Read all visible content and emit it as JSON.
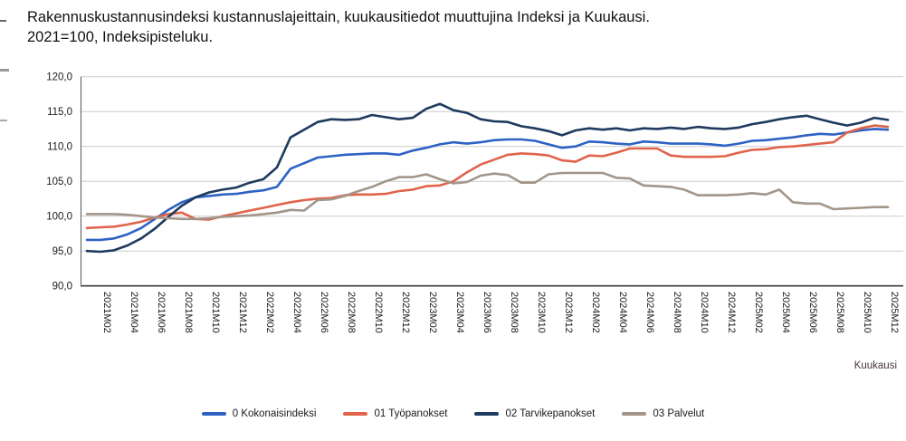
{
  "title": {
    "line1": "Rakennuskustannusindeksi kustannuslajeittain, kuukausitiedot muuttujina Indeksi ja Kuukausi.",
    "line2": "2021=100, Indeksipisteluku."
  },
  "chart_data": {
    "type": "line",
    "title": "Rakennuskustannusindeksi kustannuslajeittain, kuukausitiedot muuttujina Indeksi ja Kuukausi. 2021=100, Indeksipisteluku.",
    "x_axis_label": "Kuukausi",
    "ylim": [
      90,
      120
    ],
    "y_step": 5,
    "grid": "horizontal-only",
    "legend_position": "bottom",
    "y_tick_labels": [
      "120,0",
      "115,0",
      "110,0",
      "105,0",
      "100,0",
      "95,0",
      "90,0"
    ],
    "x_tick_labels": [
      "2021M02",
      "2021M04",
      "2021M06",
      "2021M08",
      "2021M10",
      "2021M12",
      "2022M02",
      "2022M04",
      "2022M06",
      "2022M08",
      "2022M10",
      "2022M12",
      "2023M02",
      "2023M04",
      "2023M06",
      "2023M08",
      "2023M10",
      "2023M12",
      "2024M02",
      "2024M04",
      "2024M06",
      "2024M08",
      "2024M10",
      "2024M12",
      "2025M02",
      "2025M04",
      "2025M06",
      "2025M08",
      "2025M10",
      "2025M12"
    ],
    "categories": [
      "2021M01",
      "2021M02",
      "2021M03",
      "2021M04",
      "2021M05",
      "2021M06",
      "2021M07",
      "2021M08",
      "2021M09",
      "2021M10",
      "2021M11",
      "2021M12",
      "2022M01",
      "2022M02",
      "2022M03",
      "2022M04",
      "2022M05",
      "2022M06",
      "2022M07",
      "2022M08",
      "2022M09",
      "2022M10",
      "2022M11",
      "2022M12",
      "2023M01",
      "2023M02",
      "2023M03",
      "2023M04",
      "2023M05",
      "2023M06",
      "2023M07",
      "2023M08",
      "2023M09",
      "2023M10",
      "2023M11",
      "2023M12",
      "2024M01",
      "2024M02",
      "2024M03",
      "2024M04",
      "2024M05",
      "2024M06",
      "2024M07",
      "2024M08",
      "2024M09",
      "2024M10",
      "2024M11",
      "2024M12",
      "2025M01",
      "2025M02",
      "2025M03",
      "2025M04",
      "2025M05",
      "2025M06",
      "2025M07",
      "2025M08",
      "2025M09",
      "2025M10",
      "2025M11",
      "2025M12"
    ],
    "series": [
      {
        "name": "0 Kokonaisindeksi",
        "color": "#2d62c4",
        "values": [
          96.6,
          96.6,
          96.8,
          97.4,
          98.3,
          99.6,
          100.9,
          102.0,
          102.7,
          102.9,
          103.1,
          103.2,
          103.5,
          103.7,
          104.2,
          106.8,
          107.6,
          108.4,
          108.6,
          108.8,
          108.9,
          109.0,
          109.0,
          108.8,
          109.4,
          109.8,
          110.3,
          110.6,
          110.4,
          110.6,
          110.9,
          111.0,
          111.0,
          110.8,
          110.3,
          109.8,
          110.0,
          110.7,
          110.6,
          110.4,
          110.3,
          110.7,
          110.6,
          110.4,
          110.4,
          110.4,
          110.3,
          110.1,
          110.4,
          110.8,
          110.9,
          111.1,
          111.3,
          111.6,
          111.8,
          111.7,
          112.0,
          112.3,
          112.5,
          112.4
        ]
      },
      {
        "name": "01 Työpanokset",
        "color": "#e0634b",
        "values": [
          98.3,
          98.4,
          98.5,
          98.8,
          99.2,
          99.8,
          100.3,
          100.5,
          99.6,
          99.5,
          100.0,
          100.4,
          100.8,
          101.2,
          101.6,
          102.0,
          102.3,
          102.5,
          102.6,
          103.0,
          103.1,
          103.1,
          103.2,
          103.6,
          103.8,
          104.3,
          104.4,
          105.0,
          106.3,
          107.4,
          108.1,
          108.8,
          109.0,
          108.9,
          108.7,
          108.0,
          107.8,
          108.7,
          108.6,
          109.1,
          109.7,
          109.7,
          109.7,
          108.7,
          108.5,
          108.5,
          108.5,
          108.6,
          109.1,
          109.5,
          109.6,
          109.9,
          110.0,
          110.2,
          110.4,
          110.6,
          112.0,
          112.6,
          113.0,
          112.8
        ]
      },
      {
        "name": "02 Tarvikepanokset",
        "color": "#1e3a5f",
        "values": [
          95.0,
          94.9,
          95.1,
          95.8,
          96.8,
          98.2,
          99.9,
          101.5,
          102.7,
          103.4,
          103.8,
          104.1,
          104.8,
          105.3,
          107.0,
          111.3,
          112.4,
          113.5,
          113.9,
          113.8,
          113.9,
          114.5,
          114.2,
          113.9,
          114.1,
          115.4,
          116.1,
          115.2,
          114.8,
          113.9,
          113.6,
          113.5,
          112.9,
          112.6,
          112.2,
          111.6,
          112.3,
          112.6,
          112.4,
          112.6,
          112.3,
          112.6,
          112.5,
          112.7,
          112.5,
          112.8,
          112.6,
          112.5,
          112.7,
          113.2,
          113.5,
          113.9,
          114.2,
          114.4,
          113.9,
          113.4,
          113.0,
          113.4,
          114.1,
          113.8
        ]
      },
      {
        "name": "03 Palvelut",
        "color": "#a29589",
        "values": [
          100.3,
          100.3,
          100.3,
          100.2,
          100.0,
          99.8,
          99.7,
          99.6,
          99.6,
          99.7,
          99.9,
          100.0,
          100.1,
          100.3,
          100.5,
          100.9,
          100.8,
          102.3,
          102.4,
          102.9,
          103.6,
          104.2,
          105.0,
          105.6,
          105.6,
          106.0,
          105.3,
          104.7,
          104.9,
          105.8,
          106.1,
          105.9,
          104.8,
          104.8,
          106.0,
          106.2,
          106.2,
          106.2,
          106.2,
          105.5,
          105.4,
          104.4,
          104.3,
          104.2,
          103.8,
          103.0,
          103.0,
          103.0,
          103.1,
          103.3,
          103.1,
          103.8,
          102.0,
          101.8,
          101.8,
          101.0,
          101.1,
          101.2,
          101.3,
          101.3
        ]
      }
    ]
  },
  "colors": {
    "gridline": "#cccccc",
    "axis_line": "#3c3c3c",
    "tick_text": "#1a1a1a",
    "axis_caption": "#463636"
  }
}
